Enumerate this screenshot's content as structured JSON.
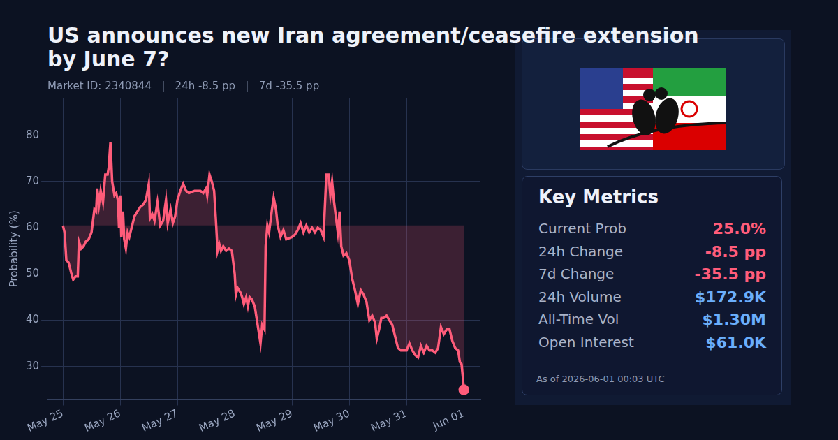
{
  "chart_data": {
    "type": "line",
    "title": "US announces new Iran agreement/ceasefire extension by June 7?",
    "subtitle": "Market ID: 2340844   |   24h -8.5 pp   |   7d -35.5 pp",
    "y_label": "Probability (%)",
    "color": "#ff5c7a",
    "grid": true,
    "xlim": [
      -0.28,
      7.29
    ],
    "xticks": [
      {
        "value": 0,
        "label": "May 25"
      },
      {
        "value": 1,
        "label": "May 26"
      },
      {
        "value": 2,
        "label": "May 27"
      },
      {
        "value": 3,
        "label": "May 28"
      },
      {
        "value": 4,
        "label": "May 29"
      },
      {
        "value": 5,
        "label": "May 30"
      },
      {
        "value": 6,
        "label": "May 31"
      },
      {
        "value": 7,
        "label": "Jun 01"
      }
    ],
    "ylim": [
      22.8,
      88.1
    ],
    "yticks": [
      30,
      40,
      50,
      60,
      70,
      80
    ],
    "x": [
      0,
      0.03,
      0.06,
      0.1,
      0.15,
      0.18,
      0.22,
      0.26,
      0.28,
      0.32,
      0.36,
      0.4,
      0.45,
      0.5,
      0.55,
      0.58,
      0.6,
      0.63,
      0.66,
      0.7,
      0.74,
      0.78,
      0.8,
      0.83,
      0.86,
      0.9,
      0.93,
      0.96,
      0.98,
      1.0,
      1.02,
      1.05,
      1.07,
      1.1,
      1.13,
      1.16,
      1.2,
      1.25,
      1.3,
      1.35,
      1.4,
      1.45,
      1.5,
      1.52,
      1.56,
      1.6,
      1.65,
      1.7,
      1.75,
      1.8,
      1.83,
      1.88,
      1.92,
      1.96,
      2.0,
      2.05,
      2.1,
      2.15,
      2.2,
      2.3,
      2.4,
      2.45,
      2.5,
      2.52,
      2.56,
      2.6,
      2.64,
      2.67,
      2.7,
      2.73,
      2.76,
      2.8,
      2.85,
      2.9,
      2.95,
      3.0,
      3.02,
      3.05,
      3.1,
      3.13,
      3.16,
      3.2,
      3.23,
      3.26,
      3.3,
      3.35,
      3.4,
      3.45,
      3.48,
      3.52,
      3.54,
      3.57,
      3.6,
      3.65,
      3.68,
      3.72,
      3.75,
      3.8,
      3.85,
      3.9,
      4.0,
      4.05,
      4.1,
      4.15,
      4.2,
      4.25,
      4.3,
      4.35,
      4.4,
      4.45,
      4.5,
      4.55,
      4.6,
      4.64,
      4.67,
      4.7,
      4.73,
      4.76,
      4.8,
      4.83,
      4.86,
      4.9,
      4.95,
      5.0,
      5.05,
      5.1,
      5.15,
      5.2,
      5.25,
      5.3,
      5.35,
      5.4,
      5.45,
      5.48,
      5.52,
      5.56,
      5.6,
      5.65,
      5.7,
      5.75,
      5.8,
      5.85,
      5.9,
      6.0,
      6.05,
      6.1,
      6.15,
      6.2,
      6.25,
      6.3,
      6.35,
      6.4,
      6.45,
      6.5,
      6.55,
      6.6,
      6.65,
      6.7,
      6.75,
      6.8,
      6.85,
      6.9,
      6.93,
      6.96,
      6.98,
      7.0
    ],
    "values": [
      60.5,
      59,
      53,
      52.5,
      50,
      48.8,
      49.5,
      49.5,
      57,
      55.5,
      56,
      57,
      57.5,
      59,
      64,
      63.5,
      68.5,
      65,
      68,
      65.5,
      71.5,
      71.5,
      73,
      78.5,
      70,
      67,
      67.5,
      66,
      60,
      67,
      58,
      63.5,
      57.5,
      55.5,
      59,
      58,
      60,
      62.5,
      63.5,
      64.5,
      65,
      66,
      69.5,
      62,
      63,
      61.5,
      65.5,
      60.5,
      61.5,
      66,
      61,
      64,
      61,
      62.5,
      66,
      68,
      69.5,
      68,
      67.5,
      68,
      68,
      67.5,
      68.5,
      67,
      71.5,
      70,
      68,
      62,
      55,
      56.5,
      55,
      56,
      55,
      55.5,
      55,
      50,
      45.5,
      47,
      46,
      45,
      43.5,
      45,
      43,
      45,
      44.5,
      43,
      39,
      35,
      39,
      38,
      56,
      60.5,
      59,
      64,
      66.5,
      64,
      60.5,
      58,
      59.5,
      57.5,
      58,
      58.5,
      59.5,
      61,
      59,
      60.5,
      59,
      60,
      59,
      60,
      59.5,
      58,
      71.5,
      71.5,
      67,
      70,
      66,
      63,
      59,
      63.5,
      56,
      54,
      54.5,
      53,
      49,
      46.5,
      43.5,
      46.5,
      45.5,
      44,
      40,
      41,
      39.5,
      36,
      38,
      40.5,
      40.5,
      41,
      40,
      39,
      36.5,
      34,
      33.5,
      33.5,
      35,
      33.5,
      32.5,
      32,
      34.5,
      33,
      34.5,
      33.5,
      33.5,
      33,
      34,
      38.5,
      37,
      38,
      38,
      35.5,
      34,
      33.5,
      31,
      30.5,
      28,
      25
    ]
  },
  "panel": {
    "heading": "Key Metrics",
    "metrics": [
      {
        "label": "Current Prob",
        "value": "25.0%",
        "color": "#ff5c7a"
      },
      {
        "label": "24h Change",
        "value": "-8.5 pp",
        "color": "#ff5c7a"
      },
      {
        "label": "7d Change",
        "value": "-35.5 pp",
        "color": "#ff5c7a"
      },
      {
        "label": "24h Volume",
        "value": "$172.9K",
        "color": "#6aaefc"
      },
      {
        "label": "All-Time Vol",
        "value": "$1.30M",
        "color": "#6aaefc"
      },
      {
        "label": "Open Interest",
        "value": "$61.0K",
        "color": "#6aaefc"
      }
    ],
    "as_of": "As of 2026-06-01 00:03 UTC"
  }
}
